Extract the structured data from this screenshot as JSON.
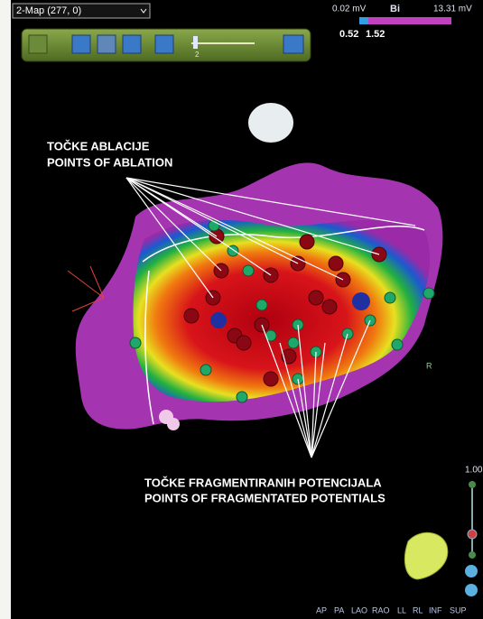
{
  "toolbar": {
    "map_selector": "2-Map (277, 0)",
    "slider_value": "2"
  },
  "color_bar": {
    "min_label": "0.02 mV",
    "mode": "Bi",
    "max_label": "13.31 mV",
    "low": "0.52",
    "high": "1.52"
  },
  "annotations": [
    {
      "lines": [
        "TOČKE ABLACIJE",
        "POINTS OF ABLATION"
      ]
    },
    {
      "lines": [
        "TOČKE FRAGMENTIRANIH POTENCIJALA",
        "POINTS OF FRAGMENTATED POTENTIALS"
      ]
    }
  ],
  "orientation_marker": "R",
  "zoom_label": "1.00",
  "view_buttons": [
    "AP",
    "PA",
    "LAO",
    "RAO",
    "LL",
    "RL",
    "INF",
    "SUP"
  ]
}
